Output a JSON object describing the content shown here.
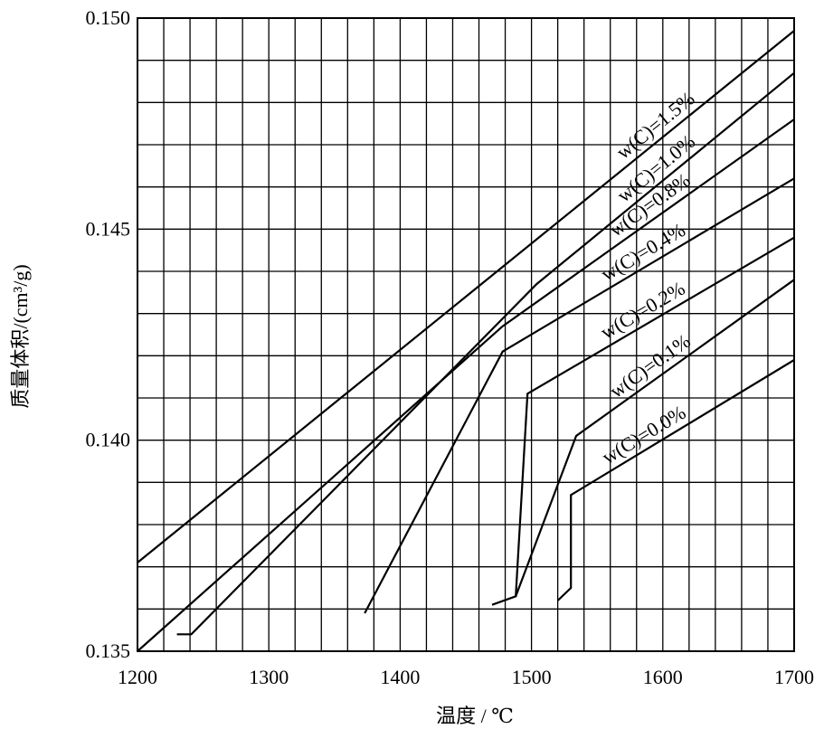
{
  "chart_data": {
    "type": "line",
    "xlabel": "温度 / ℃",
    "ylabel": "质量体积/(cm³/g)",
    "xlim": [
      1200,
      1700
    ],
    "ylim": [
      0.135,
      0.15
    ],
    "x_ticks": [
      1200,
      1300,
      1400,
      1500,
      1600,
      1700
    ],
    "x_tick_labels": [
      "1200",
      "1300",
      "1400",
      "1500",
      "1600",
      "1700"
    ],
    "y_ticks": [
      0.135,
      0.14,
      0.145,
      0.15
    ],
    "y_tick_labels": [
      "0.135",
      "0.140",
      "0.145",
      "0.150"
    ],
    "x_minor_step": 20,
    "y_minor_step": 0.001,
    "grid": true,
    "series": [
      {
        "name": "w(C)=1.5%",
        "points": [
          [
            1200,
            0.1371
          ],
          [
            1700,
            0.1497
          ]
        ]
      },
      {
        "name": "w(C)=1.0%",
        "points": [
          [
            1230,
            0.1354
          ],
          [
            1241,
            0.1354
          ],
          [
            1504,
            0.1437
          ],
          [
            1700,
            0.1487
          ]
        ]
      },
      {
        "name": "w(C)=0.8%",
        "points": [
          [
            1200,
            0.135
          ],
          [
            1478,
            0.1427
          ],
          [
            1700,
            0.1476
          ]
        ]
      },
      {
        "name": "w(C)=0.4%",
        "points": [
          [
            1373,
            0.1359
          ],
          [
            1478,
            0.1421
          ],
          [
            1700,
            0.1462
          ]
        ]
      },
      {
        "name": "w(C)=0.2%",
        "points": [
          [
            1470,
            0.1361
          ],
          [
            1488,
            0.1363
          ],
          [
            1497,
            0.1411
          ],
          [
            1700,
            0.1448
          ]
        ]
      },
      {
        "name": "w(C)=0.1%",
        "points": [
          [
            1488,
            0.1363
          ],
          [
            1534,
            0.1401
          ],
          [
            1700,
            0.1438
          ]
        ]
      },
      {
        "name": "w(C)=0.0%",
        "points": [
          [
            1520,
            0.1362
          ],
          [
            1530,
            0.1365
          ],
          [
            1530,
            0.1387
          ],
          [
            1700,
            0.1419
          ]
        ]
      }
    ]
  }
}
